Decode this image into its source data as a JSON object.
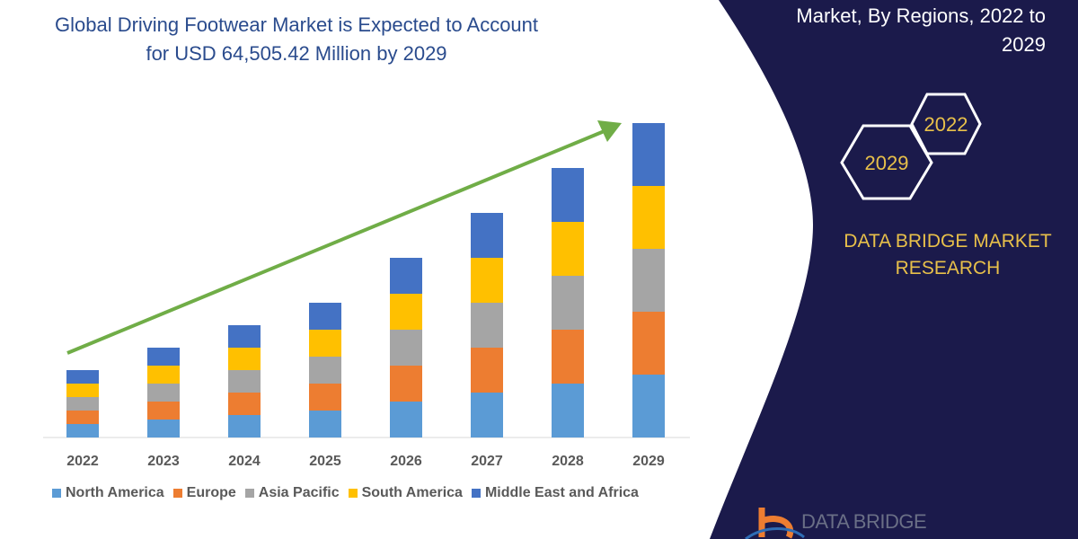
{
  "title": {
    "line1": "Global Driving Footwear Market is Expected to Account",
    "line2": "for USD 64,505.42 Million by 2029"
  },
  "panel": {
    "title_line1": "Market, By Regions, 2022 to",
    "title_line2": "2029",
    "hex_start": "2022",
    "hex_end": "2029",
    "brand_line1": "DATA BRIDGE MARKET",
    "brand_line2": "RESEARCH",
    "logo_text": "DATA BRIDGE",
    "background": "#1b1a4b",
    "accent": "#e8c04a"
  },
  "chart_data": {
    "type": "bar",
    "stacked": true,
    "title": "Global Driving Footwear Market is Expected to Account for USD 64,505.42 Million by 2029",
    "categories": [
      "2022",
      "2023",
      "2024",
      "2025",
      "2026",
      "2027",
      "2028",
      "2029"
    ],
    "series": [
      {
        "name": "North America",
        "color": "#5b9bd5",
        "values": [
          15,
          20,
          25,
          30,
          40,
          50,
          60,
          70
        ]
      },
      {
        "name": "Europe",
        "color": "#ed7d31",
        "values": [
          15,
          20,
          25,
          30,
          40,
          50,
          60,
          70
        ]
      },
      {
        "name": "Asia Pacific",
        "color": "#a5a5a5",
        "values": [
          15,
          20,
          25,
          30,
          40,
          50,
          60,
          70
        ]
      },
      {
        "name": "South America",
        "color": "#ffc000",
        "values": [
          15,
          20,
          25,
          30,
          40,
          50,
          60,
          70
        ]
      },
      {
        "name": "Middle East and Africa",
        "color": "#4472c4",
        "values": [
          15,
          20,
          25,
          30,
          40,
          50,
          60,
          70
        ]
      }
    ],
    "value_units": "relative (no value axis shown)",
    "trend_arrow_color": "#70ad47",
    "grid": false,
    "legend_position": "bottom"
  }
}
